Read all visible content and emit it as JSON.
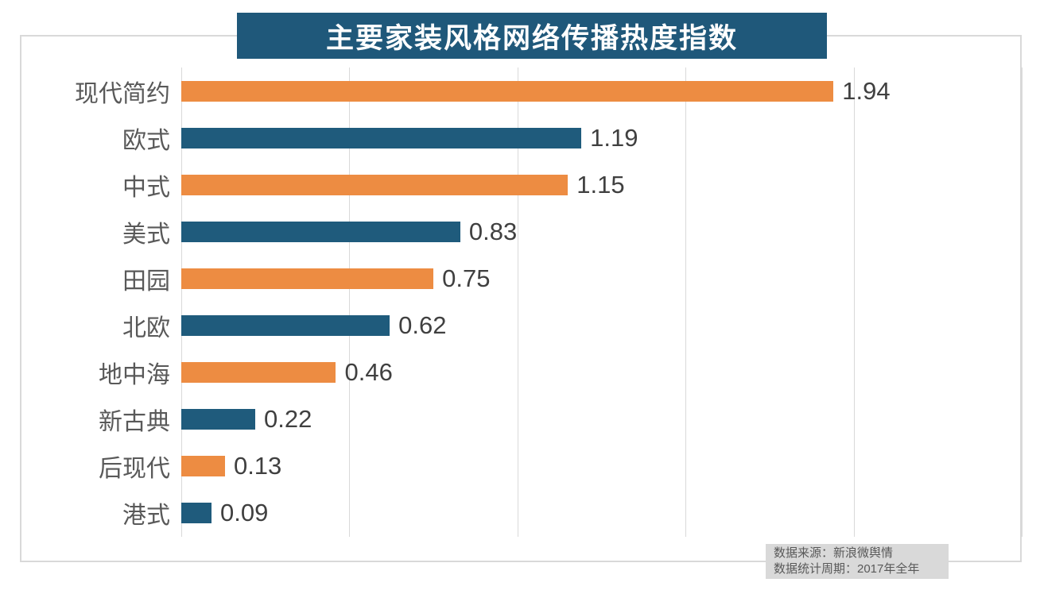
{
  "title": "主要家装风格网络传播热度指数",
  "colors": {
    "orange_bar": "#ED8C42",
    "blue_bar": "#1F5B7C",
    "banner_bg": "#1F587A",
    "grid": "#D9D9D9",
    "frame_border": "#D9D9D9",
    "category_label": "#595959",
    "value_label": "#404040",
    "source_bg": "#D9D9D9",
    "source_text": "#595959"
  },
  "chart_data": {
    "type": "bar",
    "orientation": "horizontal",
    "title": "主要家装风格网络传播热度指数",
    "categories": [
      "现代简约",
      "欧式",
      "中式",
      "美式",
      "田园",
      "北欧",
      "地中海",
      "新古典",
      "后现代",
      "港式"
    ],
    "values": [
      1.94,
      1.19,
      1.15,
      0.83,
      0.75,
      0.62,
      0.46,
      0.22,
      0.13,
      0.09
    ],
    "value_labels": [
      "1.94",
      "1.19",
      "1.15",
      "0.83",
      "0.75",
      "0.62",
      "0.46",
      "0.22",
      "0.13",
      "0.09"
    ],
    "bar_palette": [
      "#ED8C42",
      "#1F5B7C"
    ],
    "xlim": [
      0,
      2.5
    ],
    "gridlines": [
      0,
      0.5,
      1.0,
      1.5,
      2.0,
      2.5
    ],
    "grid_on": true,
    "legend": "none",
    "xlabel": "",
    "ylabel": ""
  },
  "source": {
    "line1": "数据来源：新浪微舆情",
    "line2": "数据统计周期：2017年全年"
  }
}
